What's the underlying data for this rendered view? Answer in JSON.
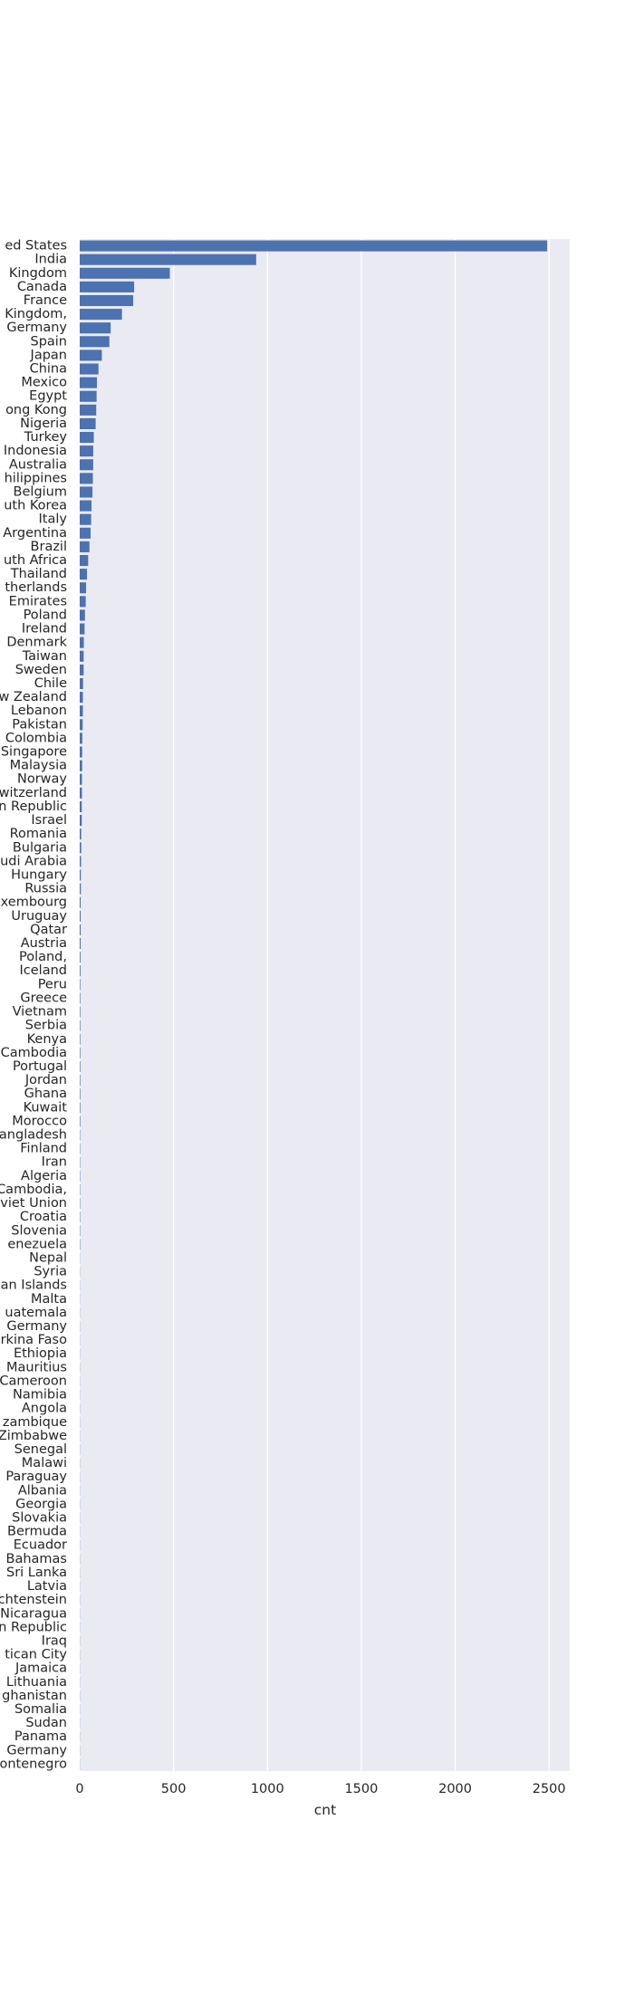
{
  "chart_data": {
    "type": "bar",
    "orientation": "horizontal",
    "title": "",
    "xlabel": "cnt",
    "ylabel": "",
    "xlim": [
      0,
      2610
    ],
    "xticks": [
      0,
      500,
      1000,
      1500,
      2000,
      2500
    ],
    "grid": true,
    "bar_color": "#4c72b0",
    "background_color": "#eaeaf2",
    "categories": [
      "United States",
      "India",
      "United Kingdom",
      "Canada",
      "France",
      "United Kingdom,",
      "Germany",
      "Spain",
      "Japan",
      "China",
      "Mexico",
      "Egypt",
      "Hong Kong",
      "Nigeria",
      "Turkey",
      "Indonesia",
      "Australia",
      "Philippines",
      "Belgium",
      "South Korea",
      "Italy",
      "Argentina",
      "Brazil",
      "South Africa",
      "Thailand",
      "Netherlands",
      "United Arab Emirates",
      "Poland",
      "Ireland",
      "Denmark",
      "Taiwan",
      "Sweden",
      "Chile",
      "New Zealand",
      "Lebanon",
      "Pakistan",
      "Colombia",
      "Singapore",
      "Malaysia",
      "Norway",
      "Switzerland",
      "Czech Republic",
      "Israel",
      "Romania",
      "Bulgaria",
      "Saudi Arabia",
      "Hungary",
      "Russia",
      "Luxembourg",
      "Uruguay",
      "Qatar",
      "Austria",
      "Poland,",
      "Iceland",
      "Peru",
      "Greece",
      "Vietnam",
      "Serbia",
      "Kenya",
      "Cambodia",
      "Portugal",
      "Jordan",
      "Ghana",
      "Kuwait",
      "Morocco",
      "Bangladesh",
      "Finland",
      "Iran",
      "Algeria",
      "Cambodia,",
      "Soviet Union",
      "Croatia",
      "Slovenia",
      "Venezuela",
      "Nepal",
      "Syria",
      "Cayman Islands",
      "Malta",
      "Guatemala",
      "West Germany",
      "Burkina Faso",
      "Ethiopia",
      "Mauritius",
      "Cameroon",
      "Namibia",
      "Angola",
      "Mozambique",
      "Zimbabwe",
      "Senegal",
      "Malawi",
      "Paraguay",
      "Albania",
      "Georgia",
      "Slovakia",
      "Bermuda",
      "Ecuador",
      "Bahamas",
      "Sri Lanka",
      "Latvia",
      "Liechtenstein",
      "Nicaragua",
      "Dominican Republic",
      "Iraq",
      "Vatican City",
      "Jamaica",
      "Lithuania",
      "Afghanistan",
      "Somalia",
      "Sudan",
      "Panama",
      "East Germany",
      "Montenegro"
    ],
    "visible_labels": [
      "ed States",
      "India",
      "Kingdom",
      "Canada",
      "France",
      "Kingdom,",
      "Germany",
      "Spain",
      "Japan",
      "China",
      "Mexico",
      "Egypt",
      "ong Kong",
      "Nigeria",
      "Turkey",
      "Indonesia",
      "Australia",
      "hilippines",
      "Belgium",
      "uth Korea",
      "Italy",
      "Argentina",
      "Brazil",
      "uth Africa",
      "Thailand",
      "therlands",
      "Emirates",
      "Poland",
      "Ireland",
      "Denmark",
      "Taiwan",
      "Sweden",
      "Chile",
      "w Zealand",
      "Lebanon",
      "Pakistan",
      "Colombia",
      "Singapore",
      "Malaysia",
      "Norway",
      "witzerland",
      "n Republic",
      "Israel",
      "Romania",
      "Bulgaria",
      "udi Arabia",
      "Hungary",
      "Russia",
      "xembourg",
      "Uruguay",
      "Qatar",
      "Austria",
      "Poland,",
      "Iceland",
      "Peru",
      "Greece",
      "Vietnam",
      "Serbia",
      "Kenya",
      "Cambodia",
      "Portugal",
      "Jordan",
      "Ghana",
      "Kuwait",
      "Morocco",
      "angladesh",
      "Finland",
      "Iran",
      "Algeria",
      "Cambodia,",
      "viet Union",
      "Croatia",
      "Slovenia",
      "enezuela",
      "Nepal",
      "Syria",
      "an Islands",
      "Malta",
      "uatemala",
      "Germany",
      "rkina Faso",
      "Ethiopia",
      "Mauritius",
      "Cameroon",
      "Namibia",
      "Angola",
      "zambique",
      "Zimbabwe",
      "Senegal",
      "Malawi",
      "Paraguay",
      "Albania",
      "Georgia",
      "Slovakia",
      "Bermuda",
      "Ecuador",
      "Bahamas",
      "Sri Lanka",
      "Latvia",
      "chtenstein",
      "Nicaragua",
      "n Republic",
      "Iraq",
      "tican City",
      "Jamaica",
      "Lithuania",
      "ghanistan",
      "Somalia",
      "Sudan",
      "Panama",
      "Germany",
      "ontenegro"
    ],
    "values": [
      2490,
      940,
      480,
      290,
      285,
      225,
      165,
      158,
      118,
      100,
      92,
      90,
      88,
      85,
      75,
      72,
      72,
      70,
      68,
      63,
      61,
      58,
      52,
      45,
      39,
      34,
      32,
      28,
      26,
      22,
      21,
      21,
      18,
      17,
      17,
      16,
      14,
      13,
      13,
      12,
      12,
      11,
      11,
      8,
      8,
      7,
      6,
      6,
      5,
      5,
      5,
      5,
      4,
      4,
      3,
      3,
      3,
      3,
      3,
      3,
      3,
      3,
      3,
      3,
      3,
      2,
      2,
      2,
      2,
      2,
      2,
      2,
      2,
      2,
      1,
      1,
      1,
      1,
      1,
      1,
      1,
      1,
      1,
      1,
      1,
      1,
      1,
      1,
      1,
      1,
      1,
      1,
      1,
      1,
      1,
      1,
      1,
      1,
      1,
      1,
      1,
      1,
      1,
      1,
      1,
      1,
      1,
      1,
      1,
      1,
      1,
      1
    ]
  }
}
